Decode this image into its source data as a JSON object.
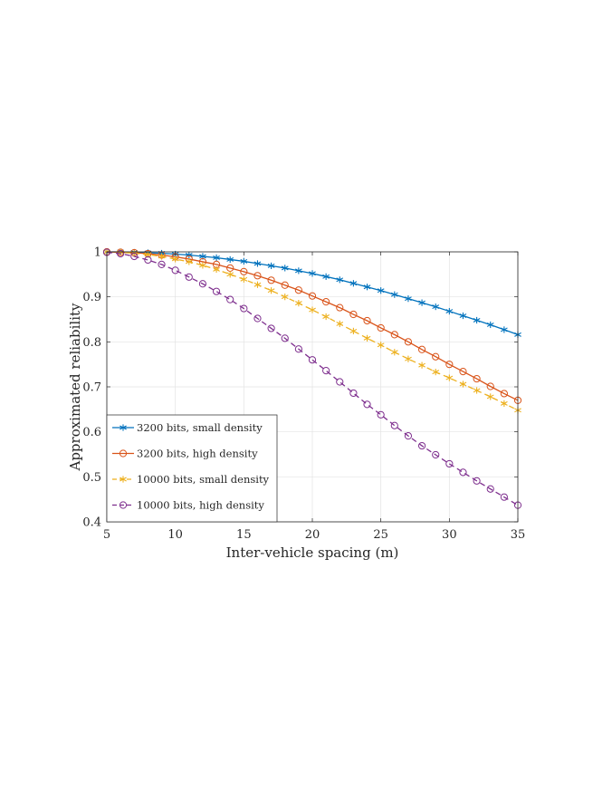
{
  "chart_data": {
    "type": "line",
    "title": "",
    "xlabel": "Inter-vehicle spacing (m)",
    "ylabel": "Approximated reliability",
    "xlim": [
      5,
      35
    ],
    "ylim": [
      0.4,
      1
    ],
    "xticks": [
      5,
      10,
      15,
      20,
      25,
      30,
      35
    ],
    "yticks": [
      0.4,
      0.5,
      0.6,
      0.7,
      0.8,
      0.9,
      1
    ],
    "xtick_labels": [
      "5",
      "10",
      "15",
      "20",
      "25",
      "30",
      "35"
    ],
    "ytick_labels": [
      "0.4",
      "0.5",
      "0.6",
      "0.7",
      "0.8",
      "0.9",
      "1"
    ],
    "grid": true,
    "legend_position": "bottom-left",
    "x": [
      5,
      6,
      7,
      8,
      9,
      10,
      11,
      12,
      13,
      14,
      15,
      16,
      17,
      18,
      19,
      20,
      21,
      22,
      23,
      24,
      25,
      26,
      27,
      28,
      29,
      30,
      31,
      32,
      33,
      34,
      35
    ],
    "series": [
      {
        "name": "3200 bits, small density",
        "color": "#0072BD",
        "line_style": "solid",
        "marker": "asterisk",
        "values": [
          1.0,
          1.0,
          0.999,
          0.998,
          0.997,
          0.995,
          0.993,
          0.99,
          0.987,
          0.983,
          0.979,
          0.974,
          0.969,
          0.964,
          0.958,
          0.952,
          0.945,
          0.938,
          0.93,
          0.922,
          0.914,
          0.905,
          0.896,
          0.887,
          0.878,
          0.868,
          0.858,
          0.848,
          0.838,
          0.827,
          0.816
        ]
      },
      {
        "name": "3200 bits, high density",
        "color": "#D95319",
        "line_style": "solid",
        "marker": "circle",
        "values": [
          1.0,
          0.999,
          0.998,
          0.996,
          0.993,
          0.989,
          0.984,
          0.978,
          0.972,
          0.964,
          0.956,
          0.947,
          0.937,
          0.926,
          0.915,
          0.902,
          0.889,
          0.876,
          0.861,
          0.847,
          0.831,
          0.816,
          0.8,
          0.783,
          0.767,
          0.75,
          0.734,
          0.718,
          0.701,
          0.685,
          0.67
        ]
      },
      {
        "name": "10000 bits, small density",
        "color": "#EDB120",
        "line_style": "dashed",
        "marker": "asterisk",
        "values": [
          1.0,
          0.999,
          0.997,
          0.994,
          0.99,
          0.984,
          0.978,
          0.97,
          0.961,
          0.95,
          0.939,
          0.927,
          0.914,
          0.9,
          0.886,
          0.871,
          0.856,
          0.84,
          0.824,
          0.808,
          0.793,
          0.777,
          0.762,
          0.748,
          0.733,
          0.72,
          0.706,
          0.692,
          0.678,
          0.663,
          0.648
        ]
      },
      {
        "name": "10000 bits, high density",
        "color": "#7E2F8E",
        "line_style": "dashed",
        "marker": "circle",
        "values": [
          0.999,
          0.996,
          0.99,
          0.982,
          0.972,
          0.959,
          0.944,
          0.929,
          0.912,
          0.894,
          0.874,
          0.852,
          0.83,
          0.808,
          0.784,
          0.76,
          0.736,
          0.711,
          0.686,
          0.661,
          0.638,
          0.614,
          0.591,
          0.569,
          0.549,
          0.529,
          0.51,
          0.491,
          0.473,
          0.455,
          0.437
        ]
      }
    ]
  }
}
